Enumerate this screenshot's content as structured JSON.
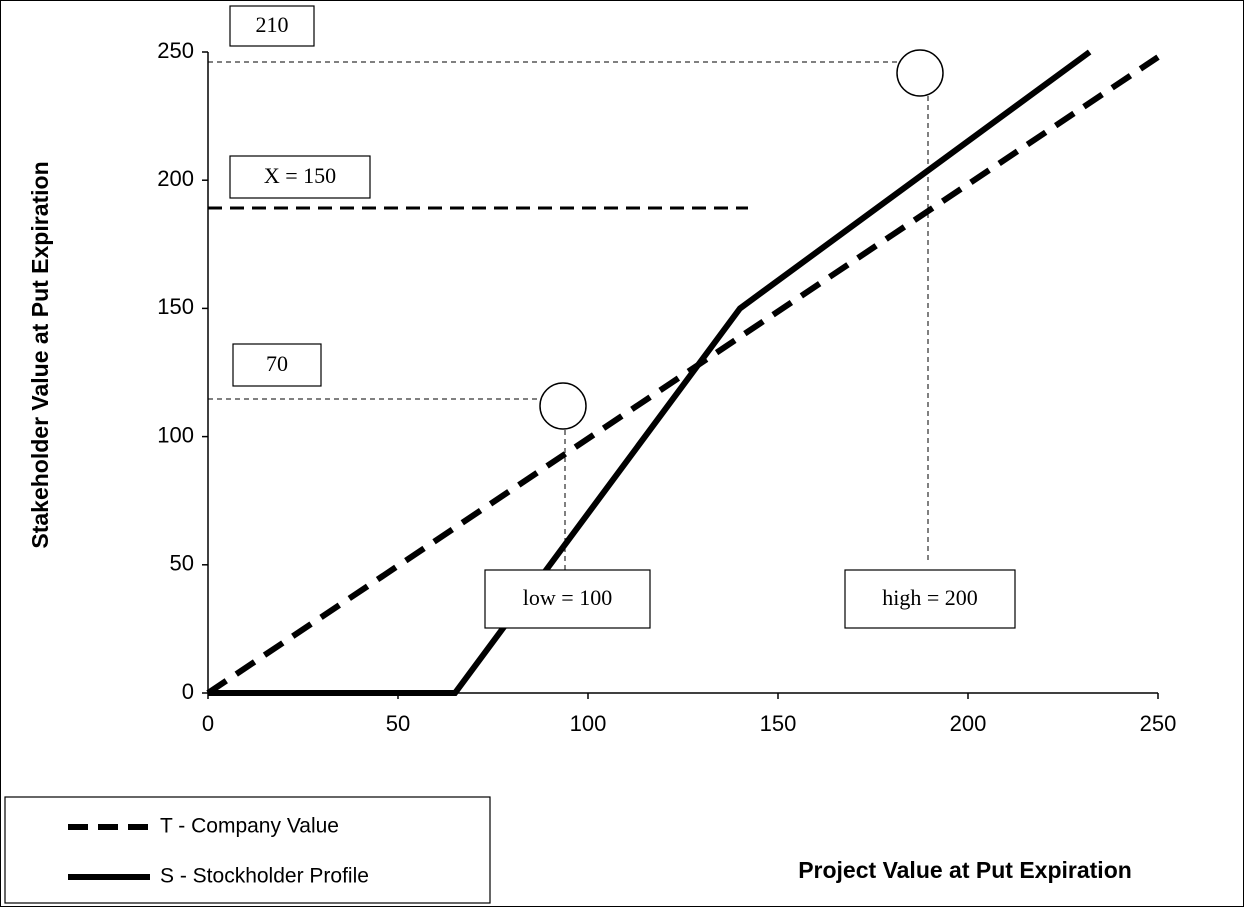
{
  "chart_data": {
    "type": "line",
    "x_label": "Project Value at Put Expiration",
    "y_label": "Stakeholder Value at Put Expiration",
    "xlim": [
      0,
      250
    ],
    "ylim": [
      0,
      250
    ],
    "xticks": [
      0,
      50,
      100,
      150,
      200,
      250
    ],
    "yticks": [
      0,
      50,
      100,
      150,
      200,
      250
    ],
    "grid": false,
    "legend": "bottom-left",
    "series": [
      {
        "name": "T - Company Value",
        "color": "#000000",
        "dash": true,
        "x": [
          0,
          250
        ],
        "values": [
          0,
          248
        ]
      },
      {
        "name": "S - Stockholder Profile",
        "color": "#000000",
        "dash": false,
        "x": [
          0,
          65,
          140,
          232
        ],
        "values": [
          0,
          0,
          150,
          250
        ]
      }
    ],
    "annotations": [
      "210",
      "X = 150",
      "70",
      "low = 100",
      "high = 200"
    ]
  }
}
